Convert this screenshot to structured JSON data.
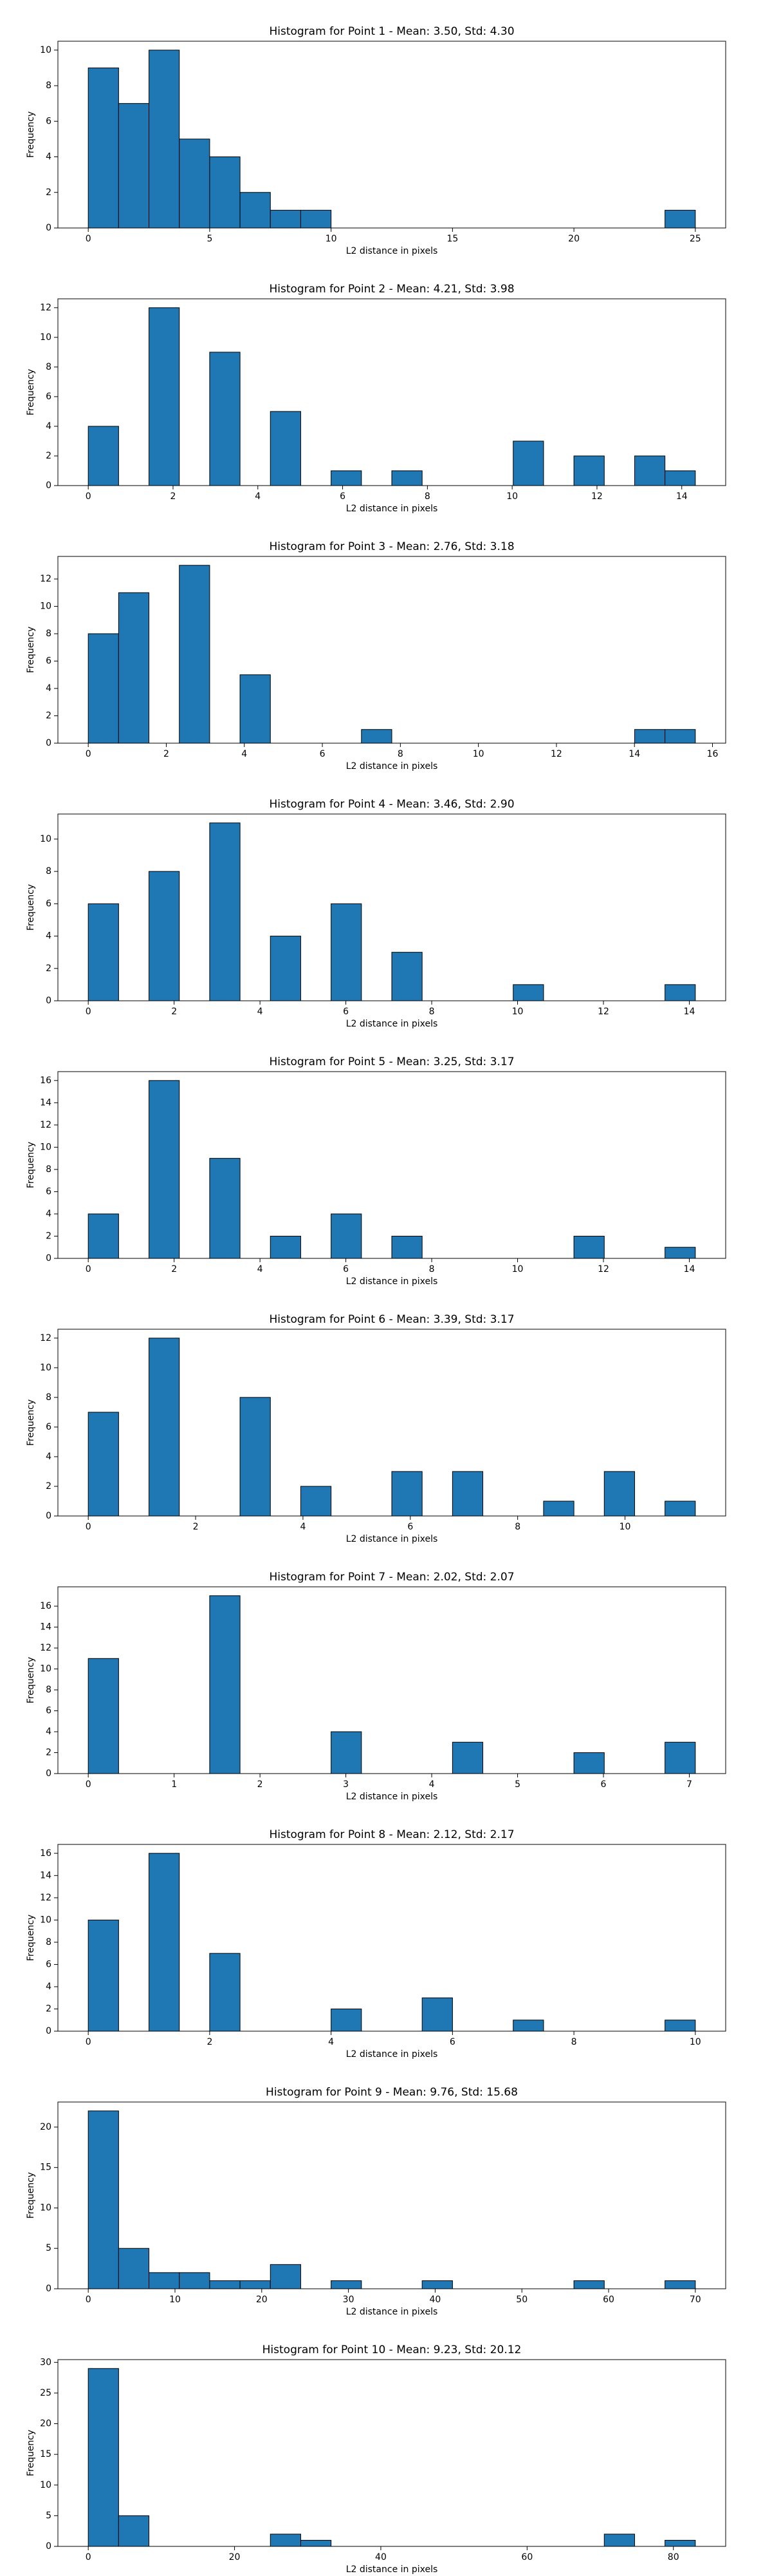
{
  "chart_data": [
    {
      "type": "histogram",
      "title": "Histogram for Point 1 - Mean: 3.50, Std: 4.30",
      "xlabel": "L2 distance in pixels",
      "ylabel": "Frequency",
      "color": "#1f77b4",
      "bins": [
        0,
        1.25,
        2.5,
        3.75,
        5,
        6.25,
        7.5,
        8.75,
        10,
        11.25,
        12.5,
        13.75,
        15,
        16.25,
        17.5,
        18.75,
        20,
        21.25,
        22.5,
        23.75,
        25
      ],
      "values": [
        9,
        7,
        10,
        5,
        4,
        2,
        1,
        1,
        0,
        0,
        0,
        0,
        0,
        0,
        0,
        0,
        0,
        0,
        0,
        1
      ],
      "xlim": [
        -1.25,
        26.25
      ],
      "ylim": [
        0,
        10.5
      ],
      "xticks": [
        0,
        5,
        10,
        15,
        20,
        25
      ],
      "yticks": [
        0,
        2,
        4,
        6,
        8,
        10
      ]
    },
    {
      "type": "histogram",
      "title": "Histogram for Point 2 - Mean: 4.21, Std: 3.98",
      "xlabel": "L2 distance in pixels",
      "ylabel": "Frequency",
      "color": "#1f77b4",
      "bins": [
        0,
        0.716,
        1.432,
        2.148,
        2.864,
        3.58,
        4.296,
        5.012,
        5.728,
        6.444,
        7.16,
        7.876,
        8.592,
        9.308,
        10.024,
        10.74,
        11.456,
        12.172,
        12.888,
        13.604,
        14.32
      ],
      "values": [
        4,
        0,
        12,
        0,
        9,
        0,
        5,
        0,
        1,
        0,
        1,
        0,
        0,
        0,
        3,
        0,
        2,
        0,
        2,
        1
      ],
      "xlim": [
        -0.716,
        15.036
      ],
      "ylim": [
        0,
        12.6
      ],
      "xticks": [
        0,
        2,
        4,
        6,
        8,
        10,
        12,
        14
      ],
      "yticks": [
        0,
        2,
        4,
        6,
        8,
        10,
        12
      ]
    },
    {
      "type": "histogram",
      "title": "Histogram for Point 3 - Mean: 2.76, Std: 3.18",
      "xlabel": "L2 distance in pixels",
      "ylabel": "Frequency",
      "color": "#1f77b4",
      "bins": [
        0,
        0.778,
        1.556,
        2.334,
        3.112,
        3.89,
        4.668,
        5.446,
        6.224,
        7.002,
        7.78,
        8.558,
        9.336,
        10.114,
        10.892,
        11.67,
        12.448,
        13.226,
        14.004,
        14.782,
        15.56
      ],
      "values": [
        8,
        11,
        0,
        13,
        0,
        5,
        0,
        0,
        0,
        1,
        0,
        0,
        0,
        0,
        0,
        0,
        0,
        0,
        1,
        1
      ],
      "xlim": [
        -0.778,
        16.338
      ],
      "ylim": [
        0,
        13.65
      ],
      "xticks": [
        0,
        2,
        4,
        6,
        8,
        10,
        12,
        14,
        16
      ],
      "yticks": [
        0,
        2,
        4,
        6,
        8,
        10,
        12
      ]
    },
    {
      "type": "histogram",
      "title": "Histogram for Point 4 - Mean: 3.46, Std: 2.90",
      "xlabel": "L2 distance in pixels",
      "ylabel": "Frequency",
      "color": "#1f77b4",
      "bins": [
        0,
        0.707,
        1.414,
        2.121,
        2.828,
        3.535,
        4.242,
        4.949,
        5.656,
        6.363,
        7.07,
        7.777,
        8.484,
        9.191,
        9.898,
        10.605,
        11.312,
        12.019,
        12.726,
        13.433,
        14.14
      ],
      "values": [
        6,
        0,
        8,
        0,
        11,
        0,
        4,
        0,
        6,
        0,
        3,
        0,
        0,
        0,
        1,
        0,
        0,
        0,
        0,
        1
      ],
      "xlim": [
        -0.707,
        14.847
      ],
      "ylim": [
        0,
        11.55
      ],
      "xticks": [
        0,
        2,
        4,
        6,
        8,
        10,
        12,
        14
      ],
      "yticks": [
        0,
        2,
        4,
        6,
        8,
        10
      ]
    },
    {
      "type": "histogram",
      "title": "Histogram for Point 5 - Mean: 3.25, Std: 3.17",
      "xlabel": "L2 distance in pixels",
      "ylabel": "Frequency",
      "color": "#1f77b4",
      "bins": [
        0,
        0.707,
        1.414,
        2.121,
        2.828,
        3.535,
        4.242,
        4.949,
        5.656,
        6.363,
        7.07,
        7.777,
        8.484,
        9.191,
        9.898,
        10.605,
        11.312,
        12.019,
        12.726,
        13.433,
        14.14
      ],
      "values": [
        4,
        0,
        16,
        0,
        9,
        0,
        2,
        0,
        4,
        0,
        2,
        0,
        0,
        0,
        0,
        0,
        2,
        0,
        0,
        1
      ],
      "xlim": [
        -0.707,
        14.847
      ],
      "ylim": [
        0,
        16.8
      ],
      "xticks": [
        0,
        2,
        4,
        6,
        8,
        10,
        12,
        14
      ],
      "yticks": [
        0,
        2,
        4,
        6,
        8,
        10,
        12,
        14,
        16
      ]
    },
    {
      "type": "histogram",
      "title": "Histogram for Point 6 - Mean: 3.39, Std: 3.17",
      "xlabel": "L2 distance in pixels",
      "ylabel": "Frequency",
      "color": "#1f77b4",
      "bins": [
        0,
        0.5655,
        1.131,
        1.6965,
        2.262,
        2.8275,
        3.393,
        3.9585,
        4.524,
        5.0895,
        5.655,
        6.2205,
        6.786,
        7.3515,
        7.917,
        8.4825,
        9.048,
        9.6135,
        10.179,
        10.7445,
        11.31
      ],
      "values": [
        7,
        0,
        12,
        0,
        0,
        8,
        0,
        2,
        0,
        0,
        3,
        0,
        3,
        0,
        0,
        1,
        0,
        3,
        0,
        1
      ],
      "xlim": [
        -0.5655,
        11.8755
      ],
      "ylim": [
        0,
        12.6
      ],
      "xticks": [
        0,
        2,
        4,
        6,
        8,
        10
      ],
      "yticks": [
        0,
        2,
        4,
        6,
        8,
        10,
        12
      ]
    },
    {
      "type": "histogram",
      "title": "Histogram for Point 7 - Mean: 2.02, Std: 2.07",
      "xlabel": "L2 distance in pixels",
      "ylabel": "Frequency",
      "color": "#1f77b4",
      "bins": [
        0,
        0.3535,
        0.707,
        1.0605,
        1.414,
        1.7675,
        2.121,
        2.4745,
        2.828,
        3.1815,
        3.535,
        3.8885,
        4.242,
        4.5955,
        4.949,
        5.3025,
        5.656,
        6.0095,
        6.363,
        6.7165,
        7.07
      ],
      "values": [
        11,
        0,
        0,
        0,
        17,
        0,
        0,
        0,
        4,
        0,
        0,
        0,
        3,
        0,
        0,
        0,
        2,
        0,
        0,
        3
      ],
      "xlim": [
        -0.3535,
        7.4235
      ],
      "ylim": [
        0,
        17.85
      ],
      "xticks": [
        0,
        1,
        2,
        3,
        4,
        5,
        6,
        7
      ],
      "yticks": [
        0,
        2,
        4,
        6,
        8,
        10,
        12,
        14,
        16
      ]
    },
    {
      "type": "histogram",
      "title": "Histogram for Point 8 - Mean: 2.12, Std: 2.17",
      "xlabel": "L2 distance in pixels",
      "ylabel": "Frequency",
      "color": "#1f77b4",
      "bins": [
        0,
        0.5,
        1,
        1.5,
        2,
        2.5,
        3,
        3.5,
        4,
        4.5,
        5,
        5.5,
        6,
        6.5,
        7,
        7.5,
        8,
        8.5,
        9,
        9.5,
        10
      ],
      "values": [
        10,
        0,
        16,
        0,
        7,
        0,
        0,
        0,
        2,
        0,
        0,
        3,
        0,
        0,
        1,
        0,
        0,
        0,
        0,
        1
      ],
      "xlim": [
        -0.5,
        10.5
      ],
      "ylim": [
        0,
        16.8
      ],
      "xticks": [
        0,
        2,
        4,
        6,
        8,
        10
      ],
      "yticks": [
        0,
        2,
        4,
        6,
        8,
        10,
        12,
        14,
        16
      ]
    },
    {
      "type": "histogram",
      "title": "Histogram for Point 9 - Mean: 9.76, Std: 15.68",
      "xlabel": "L2 distance in pixels",
      "ylabel": "Frequency",
      "color": "#1f77b4",
      "bins": [
        0,
        3.5,
        7,
        10.5,
        14,
        17.5,
        21,
        24.5,
        28,
        31.5,
        35,
        38.5,
        42,
        45.5,
        49,
        52.5,
        56,
        59.5,
        63,
        66.5,
        70
      ],
      "values": [
        22,
        5,
        2,
        2,
        1,
        1,
        3,
        0,
        1,
        0,
        0,
        1,
        0,
        0,
        0,
        0,
        1,
        0,
        0,
        1
      ],
      "xlim": [
        -3.5,
        73.5
      ],
      "ylim": [
        0,
        23.1
      ],
      "xticks": [
        0,
        10,
        20,
        30,
        40,
        50,
        60,
        70
      ],
      "yticks": [
        0,
        5,
        10,
        15,
        20
      ]
    },
    {
      "type": "histogram",
      "title": "Histogram for Point 10 - Mean: 9.23, Std: 20.12",
      "xlabel": "L2 distance in pixels",
      "ylabel": "Frequency",
      "color": "#1f77b4",
      "bins": [
        0,
        4.15,
        8.3,
        12.45,
        16.6,
        20.75,
        24.9,
        29.05,
        33.2,
        37.35,
        41.5,
        45.65,
        49.8,
        53.95,
        58.1,
        62.25,
        66.4,
        70.55,
        74.7,
        78.85,
        83
      ],
      "values": [
        29,
        5,
        0,
        0,
        0,
        0,
        2,
        1,
        0,
        0,
        0,
        0,
        0,
        0,
        0,
        0,
        0,
        2,
        0,
        1
      ],
      "xlim": [
        -4.15,
        87.15
      ],
      "ylim": [
        0,
        30.45
      ],
      "xticks": [
        0,
        20,
        40,
        60,
        80
      ],
      "yticks": [
        0,
        5,
        10,
        15,
        20,
        25,
        30
      ]
    }
  ]
}
